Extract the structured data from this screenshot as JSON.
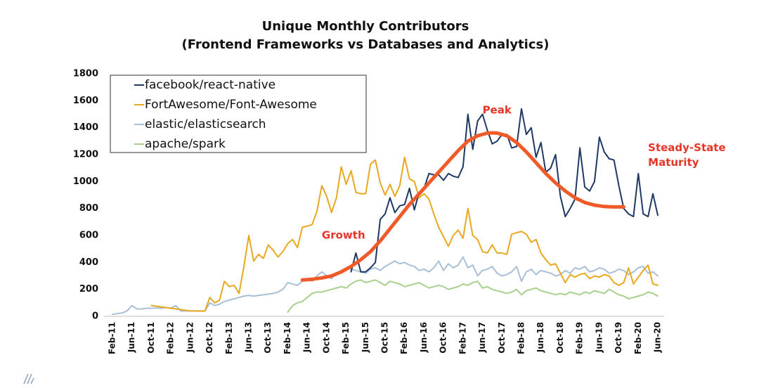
{
  "chart_data": {
    "type": "line",
    "title": [
      "Unique Monthly Contributors",
      "(Frontend Frameworks vs Databases and Analytics)"
    ],
    "categories": [
      "Feb-11",
      null,
      null,
      null,
      "Jun-11",
      null,
      null,
      null,
      "Oct-11",
      null,
      null,
      null,
      "Feb-12",
      null,
      null,
      null,
      "Jun-12",
      null,
      null,
      null,
      "Oct-12",
      null,
      null,
      null,
      "Feb-13",
      null,
      null,
      null,
      "Jun-13",
      null,
      null,
      null,
      "Oct-13",
      null,
      null,
      null,
      "Feb-14",
      null,
      null,
      null,
      "Jun-14",
      null,
      null,
      null,
      "Oct-14",
      null,
      null,
      null,
      "Feb-15",
      null,
      null,
      null,
      "Jun-15",
      null,
      null,
      null,
      "Oct-15",
      null,
      null,
      null,
      "Feb-16",
      null,
      null,
      null,
      "Jun-16",
      null,
      null,
      null,
      "Oct-16",
      null,
      null,
      null,
      "Feb-17",
      null,
      null,
      null,
      "Jun-17",
      null,
      null,
      null,
      "Oct-17",
      null,
      null,
      null,
      "Feb-18",
      null,
      null,
      null,
      "Jun-18",
      null,
      null,
      null,
      "Oct-18",
      null,
      null,
      null,
      "Feb-19",
      null,
      null,
      null,
      "Jun-19",
      null,
      null,
      null,
      "Oct-19",
      null,
      null,
      null,
      "Feb-20",
      null,
      null,
      null,
      "Jun-20"
    ],
    "series": [
      {
        "name": "facebook/react-native",
        "color": "#1f3864",
        "values": [
          null,
          null,
          null,
          null,
          null,
          null,
          null,
          null,
          null,
          null,
          null,
          null,
          null,
          null,
          null,
          null,
          null,
          null,
          null,
          null,
          null,
          null,
          null,
          null,
          null,
          null,
          null,
          null,
          null,
          null,
          null,
          null,
          null,
          null,
          null,
          null,
          null,
          null,
          null,
          null,
          null,
          null,
          null,
          null,
          null,
          null,
          null,
          null,
          null,
          330,
          470,
          330,
          330,
          360,
          400,
          720,
          760,
          880,
          770,
          820,
          830,
          950,
          790,
          920,
          950,
          1060,
          1050,
          1050,
          1010,
          1060,
          1040,
          1030,
          1110,
          1500,
          1240,
          1450,
          1500,
          1380,
          1280,
          1300,
          1350,
          1350,
          1250,
          1260,
          1540,
          1350,
          1400,
          1180,
          1290,
          1070,
          1100,
          1200,
          890,
          740,
          800,
          870,
          1250,
          960,
          930,
          1000,
          1330,
          1220,
          1170,
          1160,
          970,
          800,
          760,
          740,
          1060,
          760,
          740,
          910,
          750
        ]
      },
      {
        "name": "FortAwesome/Font-Awesome",
        "color": "#e8a820",
        "values": [
          null,
          null,
          null,
          null,
          null,
          null,
          null,
          null,
          80,
          75,
          70,
          65,
          60,
          55,
          50,
          45,
          40,
          40,
          38,
          40,
          140,
          100,
          120,
          260,
          220,
          230,
          170,
          370,
          600,
          410,
          460,
          430,
          530,
          490,
          440,
          480,
          540,
          570,
          510,
          660,
          670,
          680,
          780,
          970,
          890,
          770,
          880,
          1110,
          980,
          1080,
          920,
          910,
          910,
          1130,
          1160,
          990,
          900,
          980,
          890,
          970,
          1180,
          1020,
          1000,
          880,
          910,
          870,
          760,
          660,
          590,
          520,
          600,
          640,
          580,
          800,
          600,
          570,
          480,
          470,
          530,
          470,
          470,
          460,
          610,
          620,
          630,
          610,
          550,
          570,
          470,
          420,
          380,
          390,
          320,
          250,
          310,
          290,
          310,
          320,
          280,
          300,
          290,
          310,
          300,
          250,
          230,
          250,
          360,
          240,
          290,
          340,
          380,
          240,
          230
        ]
      },
      {
        "name": "elastic/elasticsearch",
        "color": "#a9bfd6",
        "values": [
          15,
          20,
          25,
          40,
          80,
          55,
          55,
          60,
          60,
          62,
          60,
          65,
          60,
          80,
          40,
          40,
          40,
          40,
          40,
          40,
          100,
          80,
          90,
          110,
          120,
          130,
          140,
          150,
          155,
          150,
          155,
          160,
          165,
          170,
          180,
          200,
          250,
          240,
          230,
          260,
          280,
          260,
          300,
          330,
          300,
          280,
          320,
          340,
          360,
          350,
          340,
          330,
          320,
          350,
          360,
          340,
          370,
          390,
          410,
          390,
          400,
          380,
          370,
          340,
          350,
          330,
          360,
          410,
          340,
          390,
          360,
          380,
          440,
          360,
          380,
          300,
          340,
          350,
          370,
          320,
          300,
          310,
          330,
          370,
          260,
          330,
          350,
          310,
          340,
          330,
          320,
          300,
          310,
          340,
          320,
          360,
          350,
          370,
          330,
          340,
          360,
          350,
          320,
          330,
          350,
          340,
          310,
          330,
          360,
          370,
          320,
          330,
          300
        ]
      },
      {
        "name": "apache/spark",
        "color": "#a8d08d",
        "values": [
          null,
          null,
          null,
          null,
          null,
          null,
          null,
          null,
          null,
          null,
          null,
          null,
          null,
          null,
          null,
          null,
          null,
          null,
          null,
          null,
          null,
          null,
          null,
          null,
          null,
          null,
          null,
          null,
          null,
          null,
          null,
          null,
          null,
          null,
          null,
          null,
          30,
          80,
          100,
          110,
          140,
          170,
          180,
          180,
          190,
          200,
          210,
          220,
          210,
          240,
          260,
          270,
          250,
          260,
          270,
          250,
          230,
          260,
          250,
          240,
          220,
          230,
          240,
          250,
          230,
          210,
          220,
          230,
          220,
          200,
          210,
          220,
          240,
          230,
          250,
          260,
          210,
          220,
          200,
          190,
          180,
          170,
          180,
          200,
          160,
          190,
          200,
          210,
          190,
          180,
          170,
          160,
          170,
          160,
          180,
          170,
          160,
          180,
          170,
          190,
          180,
          170,
          200,
          180,
          160,
          150,
          130,
          140,
          150,
          160,
          180,
          170,
          150
        ]
      }
    ],
    "trend": {
      "color": "#f05a28",
      "values": [
        null,
        null,
        null,
        null,
        null,
        null,
        null,
        null,
        null,
        null,
        null,
        null,
        null,
        null,
        null,
        null,
        null,
        null,
        null,
        null,
        null,
        null,
        null,
        null,
        null,
        null,
        null,
        null,
        null,
        null,
        null,
        null,
        null,
        null,
        null,
        null,
        null,
        null,
        null,
        270,
        272,
        275,
        280,
        285,
        292,
        300,
        315,
        330,
        350,
        370,
        395,
        420,
        450,
        480,
        520,
        560,
        605,
        650,
        695,
        740,
        785,
        830,
        870,
        910,
        950,
        990,
        1030,
        1070,
        1110,
        1150,
        1190,
        1230,
        1265,
        1300,
        1320,
        1340,
        1350,
        1360,
        1362,
        1360,
        1350,
        1340,
        1315,
        1290,
        1255,
        1220,
        1180,
        1140,
        1100,
        1060,
        1025,
        990,
        960,
        930,
        905,
        880,
        862,
        845,
        835,
        825,
        820,
        815,
        813,
        812,
        812,
        812,
        null,
        null,
        null,
        null,
        null,
        null,
        null
      ]
    },
    "annotations": [
      {
        "text": "Peak",
        "category": 76,
        "value": 1530
      },
      {
        "text": "Growth",
        "category": 43,
        "value": 600
      },
      {
        "text": [
          "Steady-State",
          "Maturity"
        ],
        "category": 110,
        "value": 1250
      }
    ],
    "ylim": [
      0,
      1800
    ],
    "yticks": [
      0,
      200,
      400,
      600,
      800,
      1000,
      1200,
      1400,
      1600,
      1800
    ],
    "grid": false,
    "legend": "upper left"
  }
}
